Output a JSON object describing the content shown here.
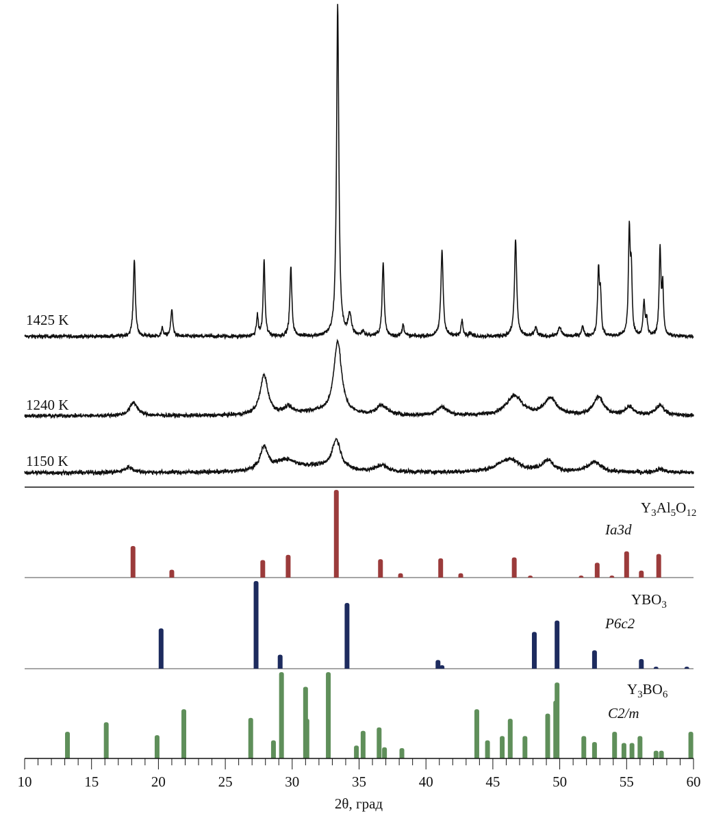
{
  "chart_data": {
    "type": "line",
    "xlabel": "2θ, град",
    "xlim": [
      10,
      60
    ],
    "xticks": [
      10,
      15,
      20,
      25,
      30,
      35,
      40,
      45,
      50,
      55,
      60
    ],
    "grid": false,
    "patterns": [
      {
        "name": "1425 K",
        "label": "1425 K",
        "noise": 1.0,
        "peaks": [
          [
            18.2,
            23,
            0.09
          ],
          [
            20.3,
            2.5,
            0.08
          ],
          [
            21.0,
            8,
            0.09
          ],
          [
            27.4,
            6,
            0.08
          ],
          [
            27.9,
            23,
            0.08
          ],
          [
            29.9,
            21,
            0.09
          ],
          [
            33.4,
            100,
            0.1
          ],
          [
            34.3,
            6,
            0.15
          ],
          [
            35.3,
            1.5,
            0.1
          ],
          [
            36.8,
            22,
            0.09
          ],
          [
            38.3,
            3.5,
            0.09
          ],
          [
            41.2,
            26,
            0.1
          ],
          [
            42.7,
            5,
            0.09
          ],
          [
            43.3,
            1,
            0.1
          ],
          [
            46.7,
            29,
            0.1
          ],
          [
            48.2,
            2.5,
            0.12
          ],
          [
            50.0,
            2.5,
            0.15
          ],
          [
            51.7,
            3,
            0.1
          ],
          [
            52.9,
            20,
            0.08
          ],
          [
            53.05,
            11,
            0.07
          ],
          [
            55.2,
            31,
            0.08
          ],
          [
            55.35,
            18,
            0.07
          ],
          [
            56.3,
            10,
            0.08
          ],
          [
            56.5,
            5,
            0.07
          ],
          [
            57.5,
            26,
            0.08
          ],
          [
            57.7,
            14,
            0.07
          ]
        ]
      },
      {
        "name": "1240 K",
        "label": "1240 K",
        "noise": 1.0,
        "peaks": [
          [
            18.15,
            4,
            0.35
          ],
          [
            27.9,
            12,
            0.35
          ],
          [
            29.7,
            2,
            0.4
          ],
          [
            31.5,
            1,
            1.5
          ],
          [
            33.4,
            22,
            0.35
          ],
          [
            36.7,
            3,
            0.45
          ],
          [
            41.2,
            2.5,
            0.45
          ],
          [
            46.6,
            6,
            0.7
          ],
          [
            49.3,
            5,
            0.55
          ],
          [
            52.9,
            5.5,
            0.45
          ],
          [
            55.2,
            2.5,
            0.4
          ],
          [
            57.5,
            3,
            0.4
          ]
        ]
      },
      {
        "name": "1150 K",
        "label": "1150 K",
        "noise": 1.1,
        "peaks": [
          [
            17.8,
            1.6,
            0.4
          ],
          [
            27.9,
            7,
            0.35
          ],
          [
            29.5,
            3,
            0.9
          ],
          [
            31.5,
            1.5,
            2.0
          ],
          [
            33.3,
            9,
            0.4
          ],
          [
            36.7,
            2,
            0.5
          ],
          [
            46.2,
            4,
            1.0
          ],
          [
            49.1,
            3.5,
            0.5
          ],
          [
            52.6,
            3,
            0.6
          ],
          [
            57.5,
            1,
            0.4
          ]
        ]
      }
    ],
    "reference_patterns": [
      {
        "name": "Y3Al5O12",
        "space_group": "Ia3d",
        "color": "#9b3b3b",
        "lines": [
          [
            18.1,
            36
          ],
          [
            21.0,
            9
          ],
          [
            27.8,
            20
          ],
          [
            29.7,
            26
          ],
          [
            33.3,
            100
          ],
          [
            36.6,
            21
          ],
          [
            38.1,
            5
          ],
          [
            41.1,
            22
          ],
          [
            42.6,
            5
          ],
          [
            46.6,
            23
          ],
          [
            47.8,
            1
          ],
          [
            51.6,
            2
          ],
          [
            52.8,
            17
          ],
          [
            53.9,
            1
          ],
          [
            55.0,
            30
          ],
          [
            56.1,
            8
          ],
          [
            57.4,
            27
          ]
        ]
      },
      {
        "name": "YBO3",
        "space_group": "P6c2",
        "color": "#1d2b5e",
        "lines": [
          [
            20.2,
            46
          ],
          [
            27.3,
            100
          ],
          [
            29.1,
            16
          ],
          [
            34.1,
            75
          ],
          [
            40.9,
            10
          ],
          [
            41.2,
            4
          ],
          [
            48.1,
            42
          ],
          [
            49.8,
            55
          ],
          [
            52.6,
            21
          ],
          [
            56.1,
            11
          ],
          [
            57.2,
            2
          ],
          [
            59.5,
            2
          ]
        ]
      },
      {
        "name": "Y3BO6",
        "space_group": "C2/m",
        "color": "#5f8f5a",
        "lines": [
          [
            13.2,
            31
          ],
          [
            16.1,
            42
          ],
          [
            19.9,
            27
          ],
          [
            21.9,
            57
          ],
          [
            26.9,
            47
          ],
          [
            28.6,
            21
          ],
          [
            29.2,
            100
          ],
          [
            31.0,
            83
          ],
          [
            31.1,
            46
          ],
          [
            32.7,
            100
          ],
          [
            34.8,
            15
          ],
          [
            35.3,
            32
          ],
          [
            36.5,
            36
          ],
          [
            36.9,
            13
          ],
          [
            38.2,
            12
          ],
          [
            43.8,
            57
          ],
          [
            44.6,
            21
          ],
          [
            45.7,
            26
          ],
          [
            46.3,
            46
          ],
          [
            47.4,
            26
          ],
          [
            49.1,
            52
          ],
          [
            49.7,
            67
          ],
          [
            49.8,
            88
          ],
          [
            51.8,
            26
          ],
          [
            52.6,
            19
          ],
          [
            54.1,
            31
          ],
          [
            54.8,
            18
          ],
          [
            55.4,
            18
          ],
          [
            56.0,
            26
          ],
          [
            57.2,
            9
          ],
          [
            57.6,
            9
          ],
          [
            59.8,
            31
          ]
        ]
      }
    ]
  }
}
